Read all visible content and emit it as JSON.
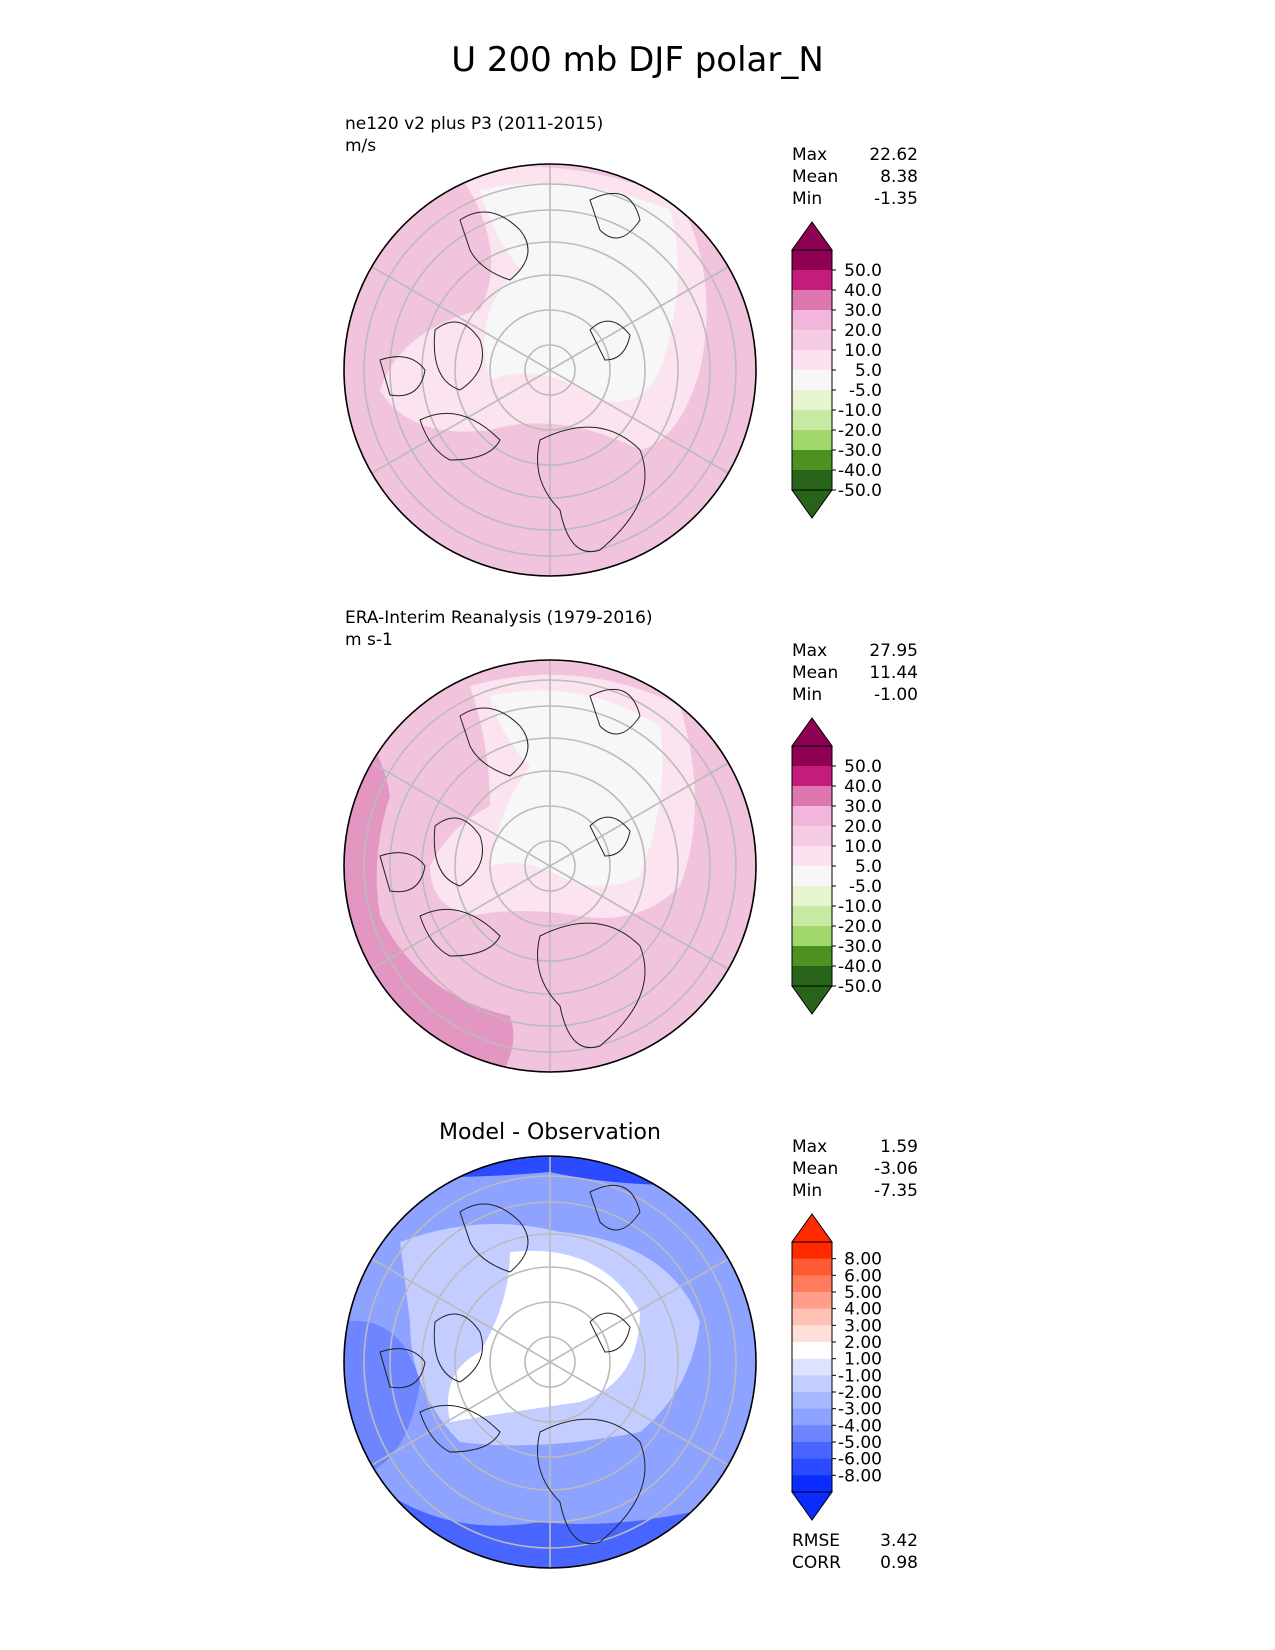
{
  "figure": {
    "title": "U 200 mb DJF polar_N"
  },
  "panels": [
    {
      "name": "test",
      "label_line1": "ne120 v2 plus P3 (2011-2015)",
      "label_line2": "m/s",
      "stats": {
        "max_label": "Max",
        "max": "22.62",
        "mean_label": "Mean",
        "mean": "8.38",
        "min_label": "Min",
        "min": "-1.35"
      },
      "colorbar": {
        "levels": [
          "50.0",
          "40.0",
          "30.0",
          "20.0",
          "10.0",
          "5.0",
          "-5.0",
          "-10.0",
          "-20.0",
          "-30.0",
          "-40.0",
          "-50.0"
        ],
        "colors": [
          "#8e0152",
          "#c51b7d",
          "#de77ae",
          "#f1b6da",
          "#f5cbe3",
          "#fde0ef",
          "#f7f7f7",
          "#e6f5d0",
          "#c7e9a3",
          "#a1d76a",
          "#4d9221",
          "#276419"
        ],
        "extend_top": "#8e0152",
        "extend_bottom": "#276419"
      }
    },
    {
      "name": "reference",
      "label_line1": "ERA-Interim Reanalysis (1979-2016)",
      "label_line2": "m s-1",
      "stats": {
        "max_label": "Max",
        "max": "27.95",
        "mean_label": "Mean",
        "mean": "11.44",
        "min_label": "Min",
        "min": "-1.00"
      },
      "colorbar": {
        "levels": [
          "50.0",
          "40.0",
          "30.0",
          "20.0",
          "10.0",
          "5.0",
          "-5.0",
          "-10.0",
          "-20.0",
          "-30.0",
          "-40.0",
          "-50.0"
        ],
        "colors": [
          "#8e0152",
          "#c51b7d",
          "#de77ae",
          "#f1b6da",
          "#f5cbe3",
          "#fde0ef",
          "#f7f7f7",
          "#e6f5d0",
          "#c7e9a3",
          "#a1d76a",
          "#4d9221",
          "#276419"
        ],
        "extend_top": "#8e0152",
        "extend_bottom": "#276419"
      }
    },
    {
      "name": "difference",
      "title": "Model - Observation",
      "stats": {
        "max_label": "Max",
        "max": "1.59",
        "mean_label": "Mean",
        "mean": "-3.06",
        "min_label": "Min",
        "min": "-7.35"
      },
      "metrics": {
        "rmse_label": "RMSE",
        "rmse": "3.42",
        "corr_label": "CORR",
        "corr": "0.98"
      },
      "colorbar": {
        "levels": [
          "8.00",
          "6.00",
          "5.00",
          "4.00",
          "3.00",
          "2.00",
          "1.00",
          "-1.00",
          "-2.00",
          "-3.00",
          "-4.00",
          "-5.00",
          "-6.00",
          "-8.00"
        ],
        "colors": [
          "#ff2a00",
          "#ff5a33",
          "#ff7b5c",
          "#ff9f8a",
          "#ffc1b3",
          "#ffe0d9",
          "#ffffff",
          "#dde2ff",
          "#c3cdff",
          "#a8b8ff",
          "#8ea2ff",
          "#6d85ff",
          "#4866ff",
          "#2a4bff",
          "#0a2cff"
        ],
        "extend_top": "#ff2a00",
        "extend_bottom": "#0a2cff"
      }
    }
  ]
}
